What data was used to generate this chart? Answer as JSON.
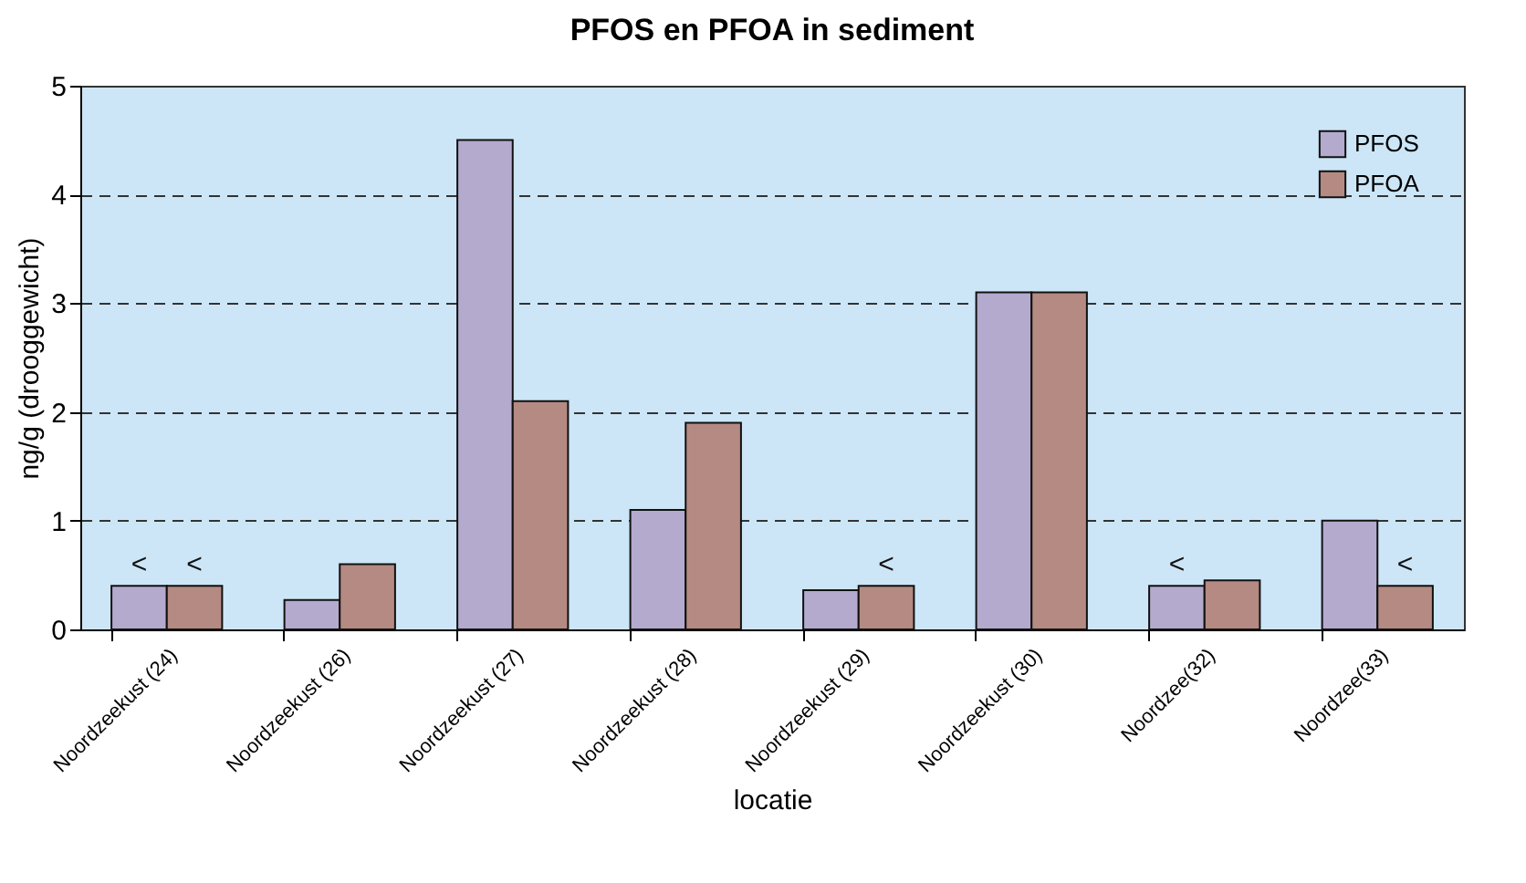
{
  "chart_data": {
    "type": "bar",
    "title": "PFOS  en PFOA in sediment",
    "xlabel": "locatie",
    "ylabel": "ng/g (drooggewicht)",
    "categories": [
      "Noordzeekust (24)",
      "Noordzeekust (26)",
      "Noordzeekust (27)",
      "Noordzeekust (28)",
      "Noordzeekust (29)",
      "Noordzeekust (30)",
      "Noordzee(32)",
      "Noordzee(33)"
    ],
    "series": [
      {
        "name": "PFOS",
        "color": "#b4aacd",
        "values": [
          0.4,
          0.27,
          4.5,
          1.1,
          0.36,
          3.1,
          0.4,
          1.0
        ],
        "value_labels": [
          "<",
          null,
          null,
          null,
          null,
          null,
          "<",
          null
        ]
      },
      {
        "name": "PFOA",
        "color": "#b48a82",
        "values": [
          0.4,
          0.6,
          2.1,
          1.9,
          0.4,
          3.1,
          0.45,
          0.4
        ],
        "value_labels": [
          "<",
          null,
          null,
          null,
          "<",
          null,
          null,
          "<"
        ]
      }
    ],
    "ylim": [
      0,
      5
    ],
    "yticks": [
      0,
      1,
      2,
      3,
      4,
      5
    ],
    "grid": "y",
    "legend": "top right"
  }
}
